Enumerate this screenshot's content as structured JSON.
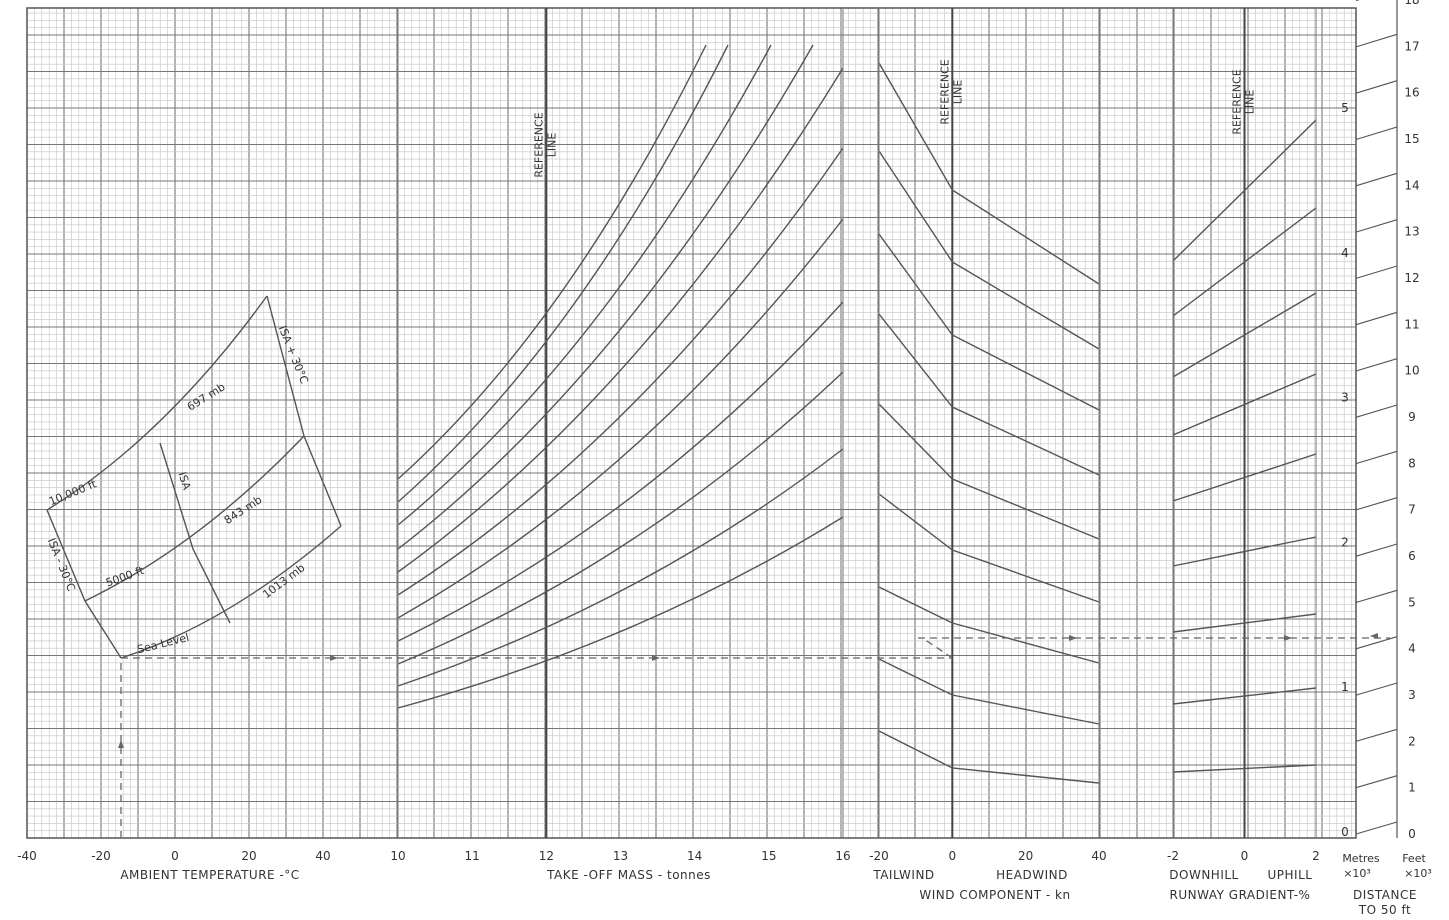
{
  "chart_data": {
    "type": "line",
    "title": "",
    "panels": {
      "temperature": {
        "xlabel": "AMBIENT TEMPERATURE - °C",
        "xlim": [
          -40,
          50
        ],
        "ticks": [
          "-40",
          "-20",
          "0",
          "20",
          "40"
        ],
        "tick_values": [
          -40,
          -20,
          0,
          20,
          40
        ],
        "curve_labels": [
          "10,000 ft",
          "5000 ft",
          "Sea Level",
          "697 mb",
          "843 mb",
          "1013 mb",
          "ISA -30°C",
          "ISA",
          "ISA +30°C"
        ]
      },
      "mass": {
        "xlabel": "TAKE -OFF MASS - tonnes",
        "xlim": [
          10,
          16
        ],
        "ticks": [
          "10",
          "11",
          "12",
          "13",
          "14",
          "15",
          "16"
        ],
        "tick_values": [
          10,
          11,
          12,
          13,
          14,
          15,
          16
        ],
        "reference_label": "REFERENCE LINE",
        "reference_value": 12
      },
      "wind": {
        "xlabel": "WIND COMPONENT - kn",
        "xlim": [
          -20,
          40
        ],
        "ticks": [
          "-20",
          "0",
          "20",
          "40"
        ],
        "tick_values": [
          -20,
          0,
          20,
          40
        ],
        "left_label": "TAILWIND",
        "right_label": "HEADWIND",
        "reference_label": "REFERENCE LINE",
        "reference_value": 0
      },
      "gradient": {
        "xlabel": "RUNWAY GRADIENT - %",
        "xlim": [
          -2,
          2
        ],
        "ticks": [
          "-2",
          "0",
          "2"
        ],
        "tick_values": [
          -2,
          0,
          2
        ],
        "left_label": "DOWNHILL",
        "right_label": "UPHILL",
        "reference_label": "REFERENCE LINE",
        "reference_value": 0
      }
    },
    "output_axis": {
      "label": "DISTANCE TO 50 ft",
      "metres_label": "Metres ×10³",
      "feet_label": "Feet ×10³",
      "metres_ticks": [
        0,
        1,
        2,
        3,
        4,
        5
      ],
      "feet_ticks": [
        0,
        1,
        2,
        3,
        4,
        5,
        6,
        7,
        8,
        9,
        10,
        11,
        12,
        13,
        14,
        15,
        16,
        17,
        18
      ]
    },
    "guide_lines_at_reference": [
      1.0,
      1.5,
      2.0,
      2.5,
      3.0,
      3.5,
      4.0,
      4.5,
      5.0,
      5.5,
      6.0,
      6.5,
      7.0,
      7.5
    ],
    "example": {
      "temperature_c": -15,
      "pressure_altitude": "Sea Level",
      "mass_t": 12.9,
      "wind_kn": 0,
      "gradient_pct": 0,
      "result_ft_x1000": 4.3,
      "result_m_x1000": 1.3
    },
    "grid": true
  },
  "labels": {
    "temp_axis": "AMBIENT TEMPERATURE -°C",
    "mass_axis": "TAKE -OFF MASS - tonnes",
    "wind_axis": "WIND COMPONENT - kn",
    "wind_left": "TAILWIND",
    "wind_right": "HEADWIND",
    "grad_axis": "RUNWAY GRADIENT-%",
    "grad_left": "DOWNHILL",
    "grad_right": "UPHILL",
    "distance_1": "DISTANCE",
    "distance_2": "TO 50 ft",
    "metres": "Metres",
    "feet": "Feet",
    "x10_m": "×10³",
    "x10_f": "×10³",
    "reference_1": "REFERENCE",
    "reference_2": "LINE",
    "c_10000": "10,000 ft",
    "c_5000": "5000 ft",
    "c_sea": "Sea Level",
    "c_697": "697 mb",
    "c_843": "843 mb",
    "c_1013": "1013 mb",
    "c_isam30": "ISA - 30°C",
    "c_isa": "ISA",
    "c_isap30": "ISA + 30°C"
  }
}
